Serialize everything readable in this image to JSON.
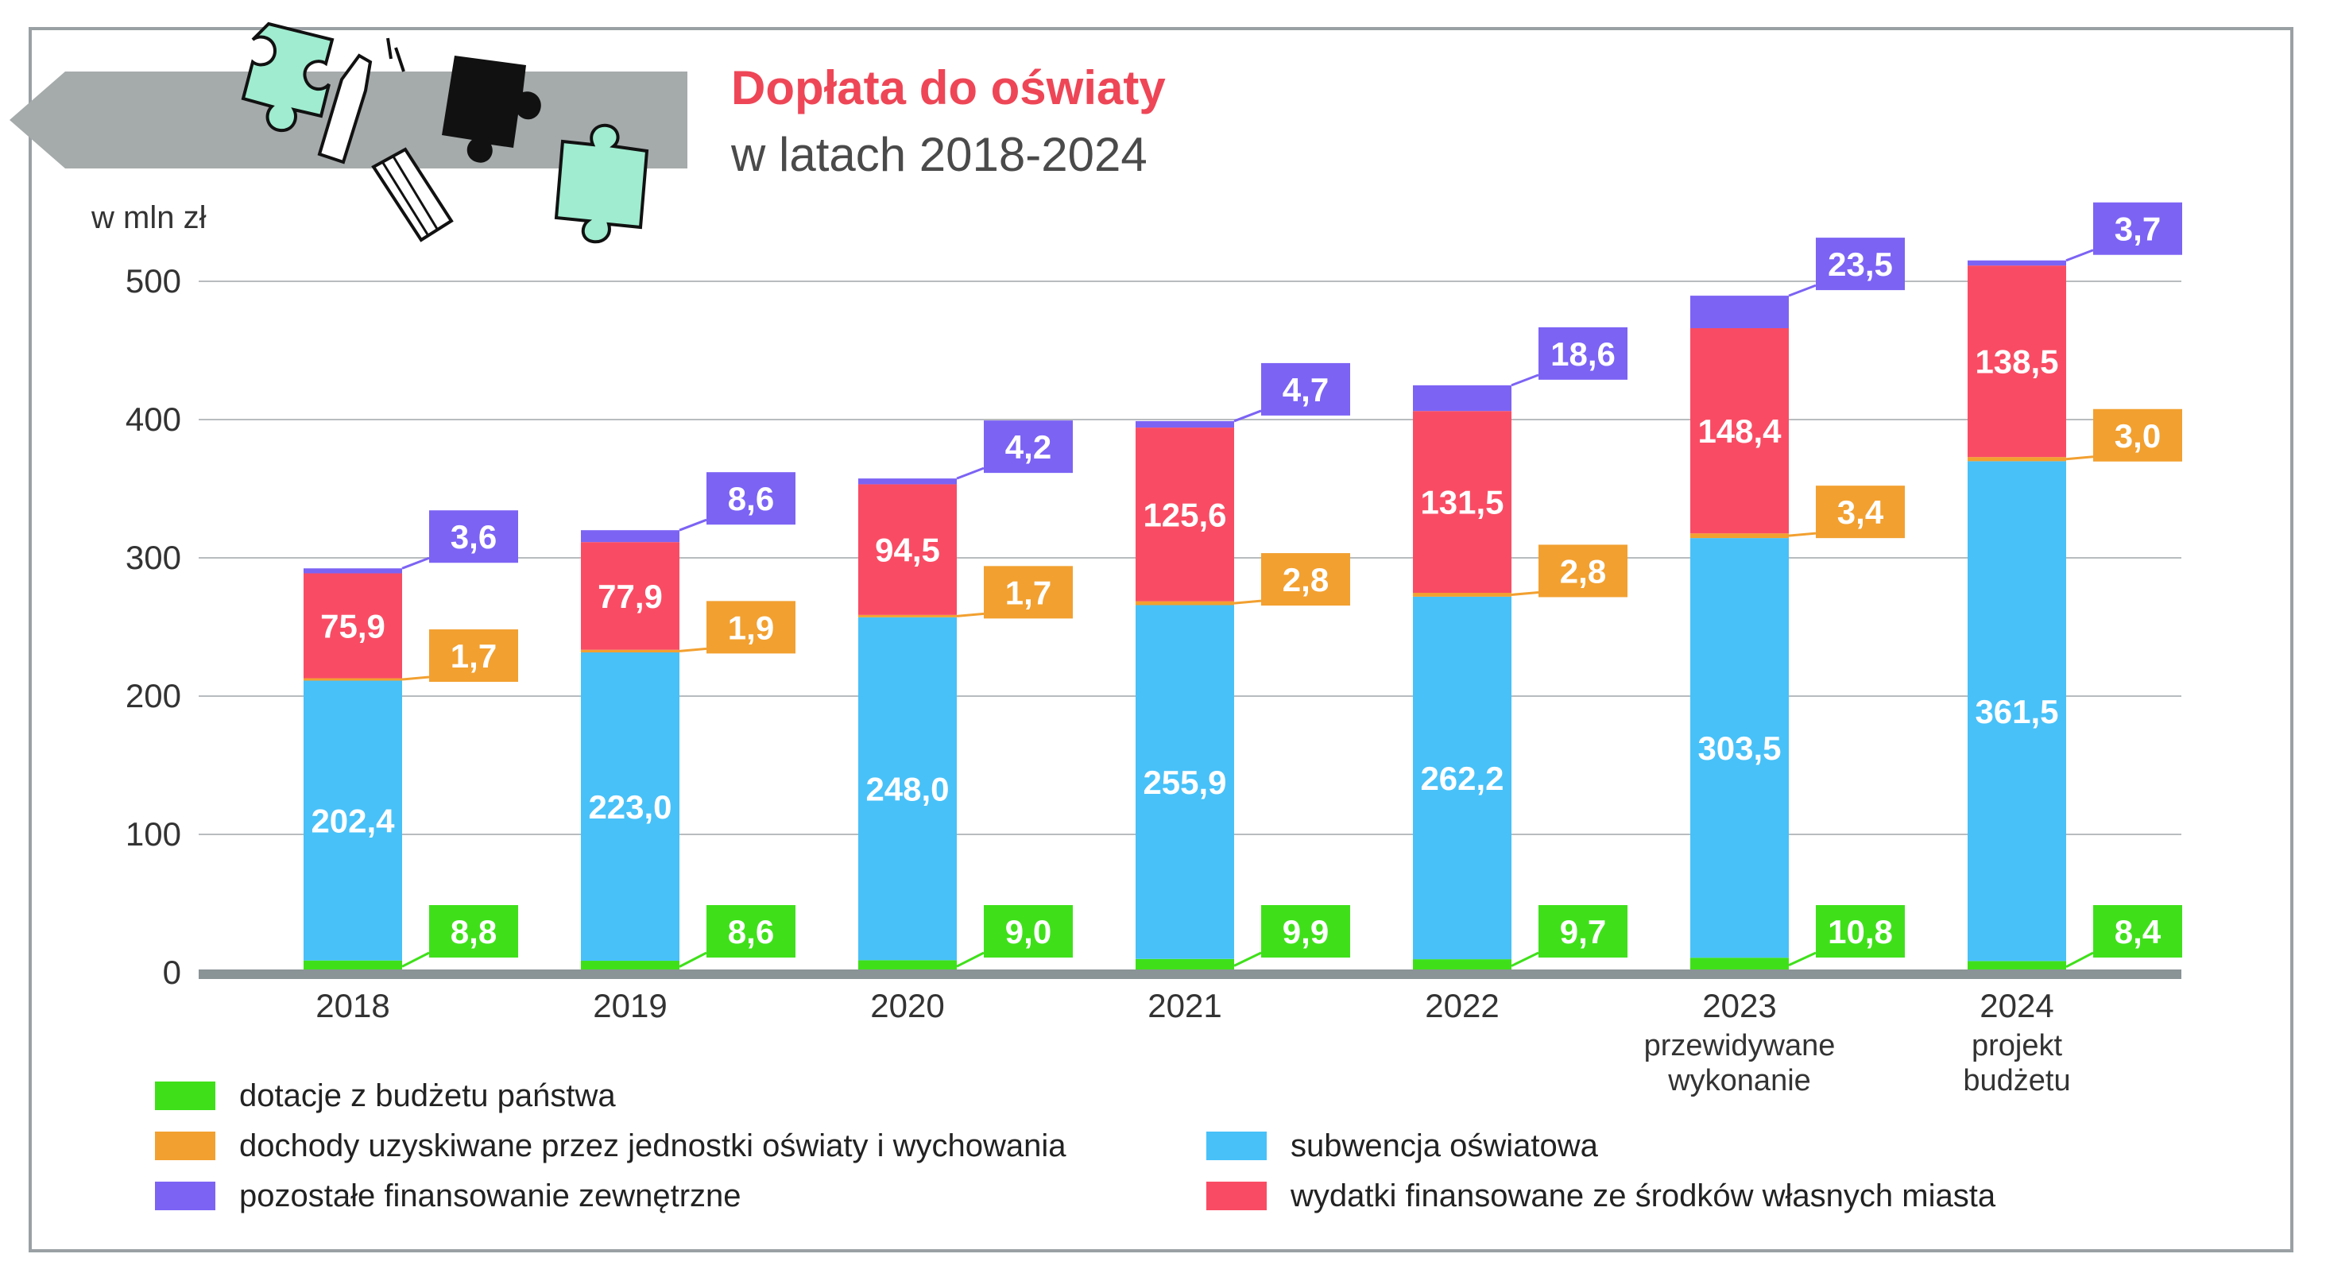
{
  "title": "Dopłata do oświaty",
  "subtitle": "w latach 2018-2024",
  "colors": {
    "dotacje": "#3fe01a",
    "dochody": "#f2a030",
    "subwencja": "#48c1f8",
    "wydatki": "#f94c64",
    "pozostale": "#7c63f4",
    "axis": "#8a9396",
    "grid": "#b8bcbe",
    "banner": "#a5aaab"
  },
  "chart_data": {
    "type": "bar",
    "stacked": true,
    "unit_label": "w mln zł",
    "ylim": [
      0,
      500
    ],
    "yticks": [
      "0",
      "100",
      "200",
      "300",
      "400",
      "500"
    ],
    "grid": true,
    "categories": [
      {
        "year": "2018",
        "note1": "",
        "note2": ""
      },
      {
        "year": "2019",
        "note1": "",
        "note2": ""
      },
      {
        "year": "2020",
        "note1": "",
        "note2": ""
      },
      {
        "year": "2021",
        "note1": "",
        "note2": ""
      },
      {
        "year": "2022",
        "note1": "",
        "note2": ""
      },
      {
        "year": "2023",
        "note1": "przewidywane",
        "note2": "wykonanie"
      },
      {
        "year": "2024",
        "note1": "projekt",
        "note2": "budżetu"
      }
    ],
    "series": [
      {
        "key": "dotacje",
        "name": "dotacje z budżetu państwa",
        "labels": [
          "8,8",
          "8,6",
          "9,0",
          "9,9",
          "9,7",
          "10,8",
          "8,4"
        ],
        "values": [
          8.8,
          8.6,
          9.0,
          9.9,
          9.7,
          10.8,
          8.4
        ]
      },
      {
        "key": "subwencja",
        "name": "subwencja oświatowa",
        "labels": [
          "202,4",
          "223,0",
          "248,0",
          "255,9",
          "262,2",
          "303,5",
          "361,5"
        ],
        "values": [
          202.4,
          223.0,
          248.0,
          255.9,
          262.2,
          303.5,
          361.5
        ]
      },
      {
        "key": "dochody",
        "name": "dochody uzyskiwane przez jednostki oświaty i wychowania",
        "labels": [
          "1,7",
          "1,9",
          "1,7",
          "2,8",
          "2,8",
          "3,4",
          "3,0"
        ],
        "values": [
          1.7,
          1.9,
          1.7,
          2.8,
          2.8,
          3.4,
          3.0
        ]
      },
      {
        "key": "wydatki",
        "name": "wydatki finansowane ze środków własnych miasta",
        "labels": [
          "75,9",
          "77,9",
          "94,5",
          "125,6",
          "131,5",
          "148,4",
          "138,5"
        ],
        "values": [
          75.9,
          77.9,
          94.5,
          125.6,
          131.5,
          148.4,
          138.5
        ]
      },
      {
        "key": "pozostale",
        "name": "pozostałe finansowanie zewnętrzne",
        "labels": [
          "3,6",
          "8,6",
          "4,2",
          "4,7",
          "18,6",
          "23,5",
          "3,7"
        ],
        "values": [
          3.6,
          8.6,
          4.2,
          4.7,
          18.6,
          23.5,
          3.7
        ]
      }
    ]
  }
}
